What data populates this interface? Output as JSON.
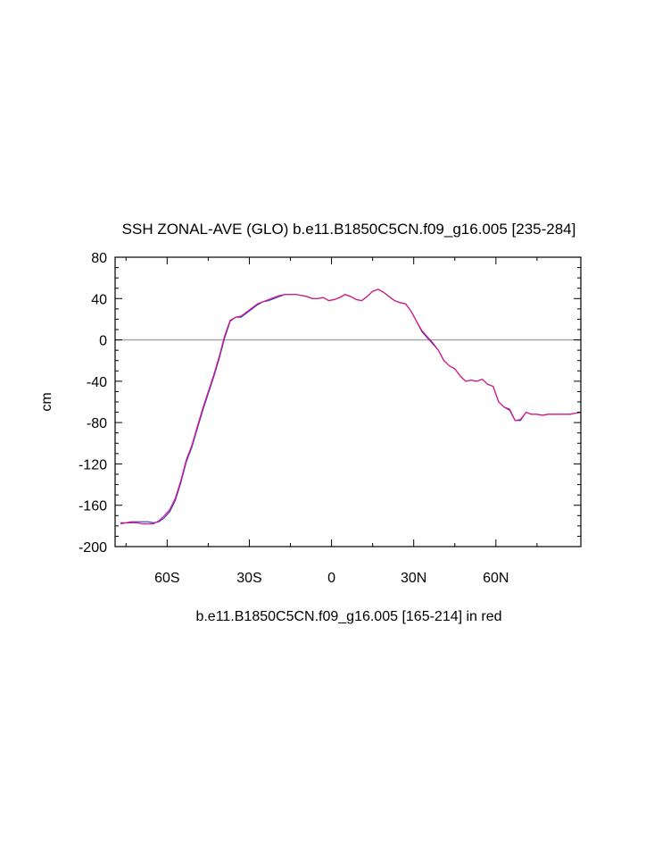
{
  "chart_data": {
    "type": "line",
    "title": "SSH ZONAL-AVE (GLO) b.e11.B1850C5CN.f09_g16.005 [235-284]",
    "xlabel": "b.e11.B1850C5CN.f09_g16.005 [165-214] in red",
    "ylabel": "cm",
    "xlim": [
      -79,
      91
    ],
    "ylim": [
      -200,
      80
    ],
    "grid": false,
    "x_ticks": [
      {
        "value": -60,
        "label": "60S"
      },
      {
        "value": -30,
        "label": "30S"
      },
      {
        "value": 0,
        "label": "0"
      },
      {
        "value": 30,
        "label": "30N"
      },
      {
        "value": 60,
        "label": "60N"
      }
    ],
    "y_ticks": [
      {
        "value": 80,
        "label": "80"
      },
      {
        "value": 40,
        "label": "40"
      },
      {
        "value": 0,
        "label": "0"
      },
      {
        "value": -40,
        "label": "-40"
      },
      {
        "value": -80,
        "label": "-80"
      },
      {
        "value": -120,
        "label": "-120"
      },
      {
        "value": -160,
        "label": "-160"
      },
      {
        "value": -200,
        "label": "-200"
      }
    ],
    "reference_line": {
      "y": 0,
      "color": "#a0a0a0"
    },
    "series": [
      {
        "color": "#2f3fd6",
        "x": [
          -77,
          -75,
          -73,
          -71,
          -69,
          -67,
          -65,
          -63,
          -61,
          -59,
          -57,
          -55,
          -53,
          -51,
          -49,
          -47,
          -45,
          -43,
          -41,
          -39,
          -37,
          -35,
          -33,
          -31,
          -29,
          -27,
          -25,
          -23,
          -21,
          -19,
          -17,
          -15,
          -13,
          -11,
          -9,
          -7,
          -5,
          -3,
          -1,
          1,
          3,
          5,
          7,
          9,
          11,
          13,
          15,
          17,
          19,
          21,
          23,
          25,
          27,
          29,
          31,
          33,
          35,
          37,
          39,
          41,
          43,
          45,
          47,
          49,
          51,
          53,
          55,
          57,
          59,
          61,
          63,
          65,
          67,
          69,
          71,
          73,
          75,
          77,
          79,
          81,
          83,
          85,
          87,
          89,
          91
        ],
        "y": [
          -177,
          -177,
          -176,
          -176,
          -176,
          -176,
          -177,
          -176,
          -172,
          -166,
          -155,
          -138,
          -118,
          -104,
          -86,
          -68,
          -52,
          -36,
          -18,
          2,
          18,
          22,
          22,
          26,
          30,
          34,
          37,
          38,
          40,
          42,
          44,
          44,
          44,
          43,
          42,
          40,
          40,
          41,
          38,
          39,
          41,
          44,
          42,
          39,
          38,
          42,
          47,
          49,
          46,
          42,
          38,
          36,
          35,
          28,
          18,
          8,
          2,
          -4,
          -10,
          -20,
          -25,
          -28,
          -35,
          -40,
          -39,
          -40,
          -38,
          -43,
          -45,
          -60,
          -65,
          -68,
          -78,
          -78,
          -70,
          -72,
          -72,
          -73,
          -72,
          -72,
          -72,
          -72,
          -72,
          -71,
          -70
        ]
      },
      {
        "color": "#e0147a",
        "x": [
          -77,
          -75,
          -73,
          -71,
          -69,
          -67,
          -65,
          -63,
          -61,
          -59,
          -57,
          -55,
          -53,
          -51,
          -49,
          -47,
          -45,
          -43,
          -41,
          -39,
          -37,
          -35,
          -33,
          -31,
          -29,
          -27,
          -25,
          -23,
          -21,
          -19,
          -17,
          -15,
          -13,
          -11,
          -9,
          -7,
          -5,
          -3,
          -1,
          1,
          3,
          5,
          7,
          9,
          11,
          13,
          15,
          17,
          19,
          21,
          23,
          25,
          27,
          29,
          31,
          33,
          35,
          37,
          39,
          41,
          43,
          45,
          47,
          49,
          51,
          53,
          55,
          57,
          59,
          61,
          63,
          65,
          67,
          69,
          71,
          73,
          75,
          77,
          79,
          81,
          83,
          85,
          87,
          89,
          91
        ],
        "y": [
          -178,
          -177,
          -177,
          -177,
          -178,
          -178,
          -178,
          -175,
          -170,
          -164,
          -153,
          -136,
          -116,
          -102,
          -84,
          -66,
          -50,
          -34,
          -16,
          4,
          19,
          22,
          23,
          27,
          31,
          35,
          37,
          39,
          41,
          43,
          44,
          44,
          44,
          43,
          42,
          40,
          40,
          41,
          38,
          39,
          41,
          44,
          42,
          39,
          38,
          42,
          47,
          49,
          46,
          42,
          38,
          36,
          35,
          28,
          18,
          9,
          3,
          -3,
          -10,
          -20,
          -25,
          -28,
          -35,
          -40,
          -39,
          -40,
          -38,
          -43,
          -45,
          -60,
          -65,
          -67,
          -78,
          -77,
          -70,
          -72,
          -72,
          -73,
          -72,
          -72,
          -72,
          -72,
          -72,
          -71,
          -70
        ]
      }
    ]
  }
}
